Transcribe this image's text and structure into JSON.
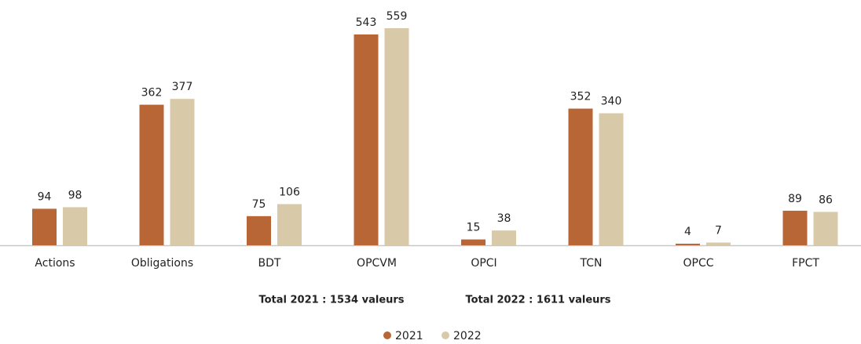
{
  "chart_data": {
    "type": "bar",
    "categories": [
      "Actions",
      "Obligations",
      "BDT",
      "OPCVM",
      "OPCI",
      "TCN",
      "OPCC",
      "FPCT"
    ],
    "series": [
      {
        "name": "2021",
        "color": "#b86636",
        "values": [
          94,
          362,
          75,
          543,
          15,
          352,
          4,
          89
        ]
      },
      {
        "name": "2022",
        "color": "#d8c9a8",
        "values": [
          98,
          377,
          106,
          559,
          38,
          340,
          7,
          86
        ]
      }
    ],
    "annotations": [
      "Total 2021 : 1534 valeurs",
      "Total 2022 : 1611 valeurs"
    ]
  }
}
